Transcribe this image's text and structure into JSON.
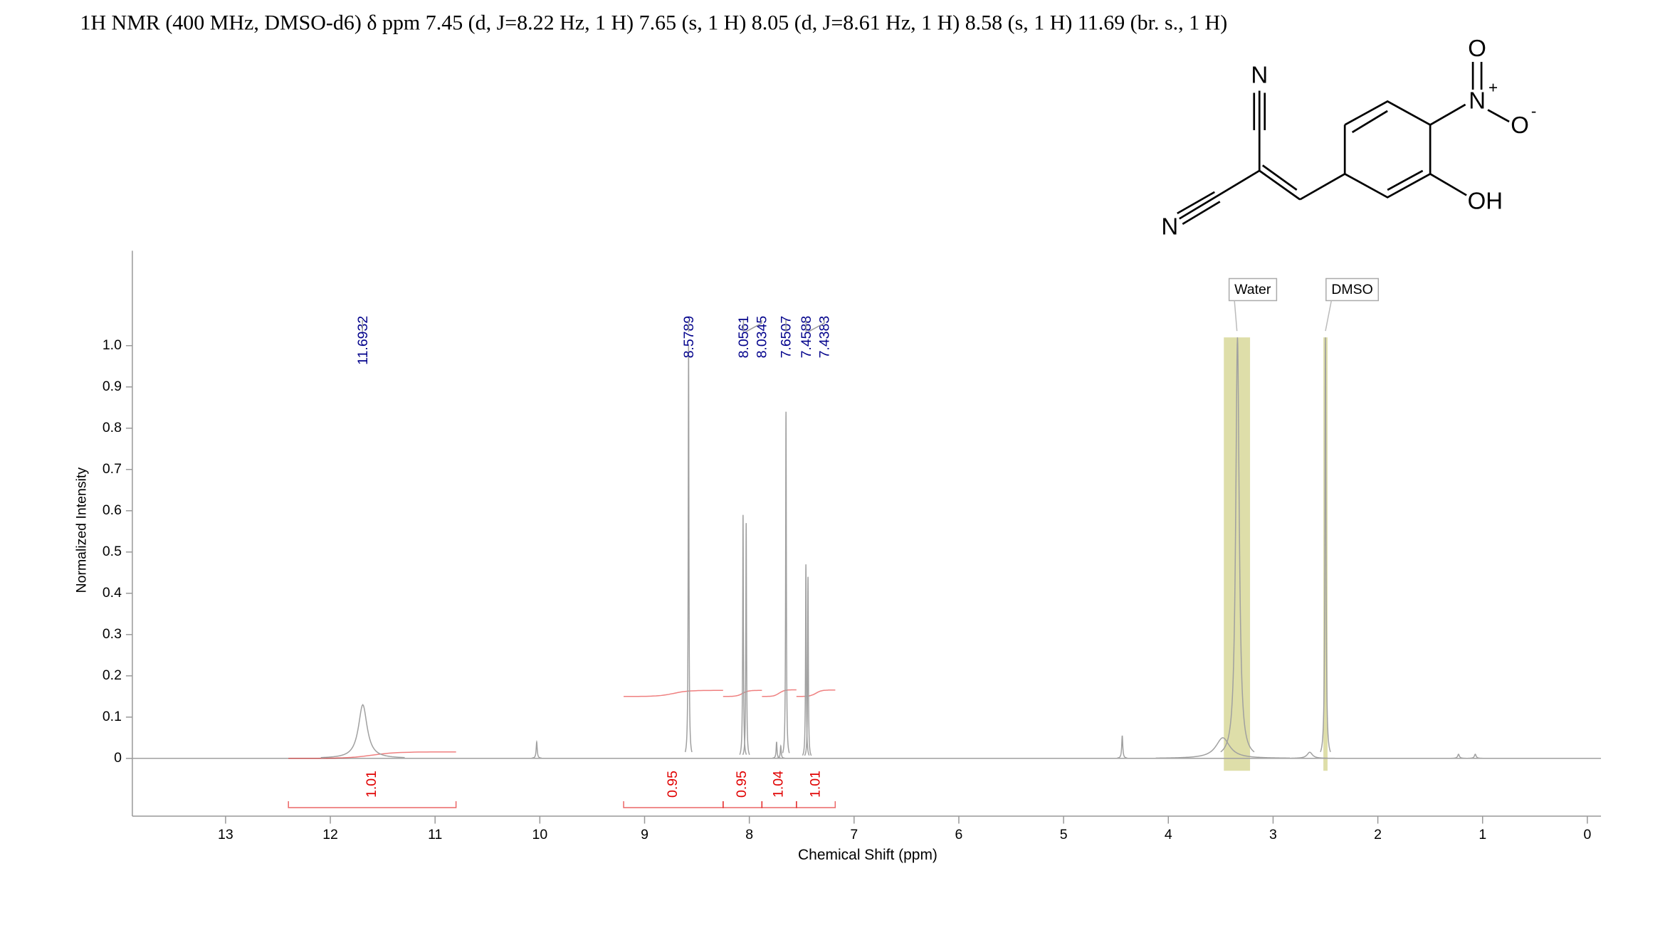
{
  "chart_data": {
    "type": "nmr",
    "title": "1H NMR (400 MHz, DMSO-d6) δ ppm 7.45 (d, J=8.22 Hz, 1 H) 7.65 (s, 1 H) 8.05 (d, J=8.61 Hz, 1 H) 8.58 (s, 1 H) 11.69 (br. s., 1 H)",
    "xlabel": "Chemical Shift (ppm)",
    "ylabel": "Normalized Intensity",
    "xlim": [
      13.89,
      -0.13
    ],
    "ylim": [
      -0.14,
      1.23
    ],
    "xticks": [
      13,
      12,
      11,
      10,
      9,
      8,
      7,
      6,
      5,
      4,
      3,
      2,
      1,
      0
    ],
    "yticks": [
      0,
      0.1,
      0.2,
      0.3,
      0.4,
      0.5,
      0.6,
      0.7,
      0.8,
      0.9,
      {
        "value": 1,
        "label": "1.0"
      }
    ],
    "color": "#a0a0a0",
    "peaks": [
      {
        "x": 11.69,
        "height": 0.13,
        "width": 0.05
      },
      {
        "x": 10.03,
        "height": 0.04,
        "width": 0.006
      },
      {
        "x": 8.58,
        "height": 1.0,
        "width": 0.004
      },
      {
        "x": 8.06,
        "height": 0.59,
        "width": 0.004
      },
      {
        "x": 8.03,
        "height": 0.57,
        "width": 0.004
      },
      {
        "x": 7.74,
        "height": 0.04,
        "width": 0.005
      },
      {
        "x": 7.7,
        "height": 0.03,
        "width": 0.005
      },
      {
        "x": 7.65,
        "height": 0.84,
        "width": 0.004
      },
      {
        "x": 7.46,
        "height": 0.47,
        "width": 0.004
      },
      {
        "x": 7.44,
        "height": 0.44,
        "width": 0.004
      },
      {
        "x": 4.44,
        "height": 0.055,
        "width": 0.006
      },
      {
        "x": 3.48,
        "height": 0.05,
        "width": 0.08
      },
      {
        "x": 3.34,
        "height": 1.02,
        "width": 0.02
      },
      {
        "x": 2.65,
        "height": 0.015,
        "width": 0.03
      },
      {
        "x": 2.5,
        "height": 1.02,
        "width": 0.006
      },
      {
        "x": 1.23,
        "height": 0.01,
        "width": 0.01
      },
      {
        "x": 1.07,
        "height": 0.01,
        "width": 0.01
      }
    ],
    "peak_labels": [
      11.6932,
      8.5789,
      8.0561,
      8.0345,
      7.6507,
      7.4588,
      7.4383
    ],
    "peak_label_color": "#00008b",
    "integrals": [
      {
        "value": 1.01,
        "from": 12.4,
        "to": 10.8
      },
      {
        "value": 0.95,
        "from": 9.2,
        "to": 8.25
      },
      {
        "value": 0.95,
        "from": 8.25,
        "to": 7.88
      },
      {
        "value": 1.04,
        "from": 7.88,
        "to": 7.55
      },
      {
        "value": 1.01,
        "from": 7.55,
        "to": 7.18
      }
    ],
    "integral_color": "#e00000",
    "regions": [
      {
        "label": "Water",
        "from": 3.47,
        "to": 3.22
      },
      {
        "label": "DMSO",
        "from": 2.52,
        "to": 2.48
      }
    ],
    "region_color": "#d8d89a"
  },
  "structure": {
    "atoms": [
      "N",
      "N",
      "O",
      "N",
      "+",
      "O",
      "-",
      "OH"
    ]
  }
}
